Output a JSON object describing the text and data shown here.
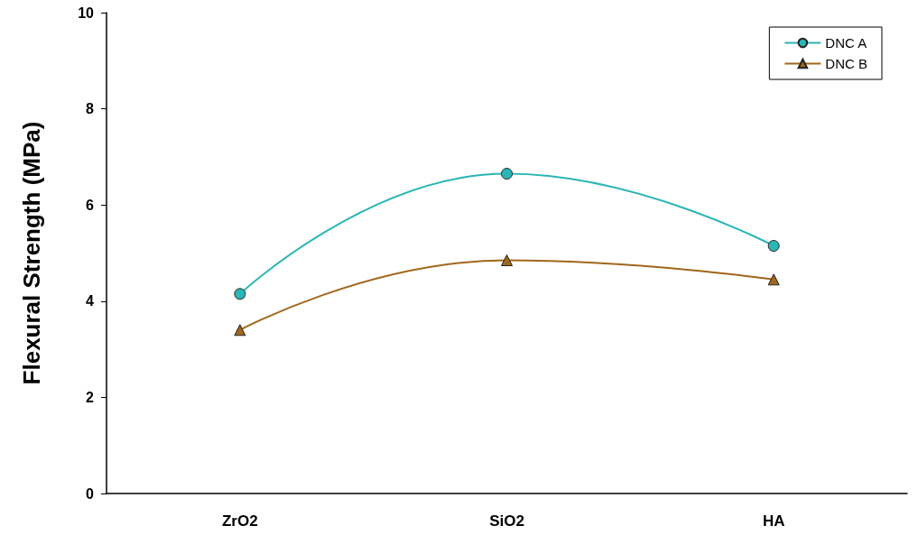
{
  "chart_data": {
    "type": "line",
    "ylabel": "Flexural Strength (MPa)",
    "categories": [
      "ZrO2",
      "SiO2",
      "HA"
    ],
    "series": [
      {
        "name": "DNC A",
        "color": "#2bb5b5",
        "marker": "circle",
        "values": [
          4.15,
          6.65,
          5.15
        ]
      },
      {
        "name": "DNC B",
        "color": "#a0661c",
        "marker": "triangle",
        "values": [
          3.4,
          4.85,
          4.45
        ]
      }
    ],
    "ylim": [
      0,
      10
    ],
    "yticks": [
      0,
      2,
      4,
      6,
      8,
      10
    ],
    "grid": false,
    "legend": "top right"
  }
}
